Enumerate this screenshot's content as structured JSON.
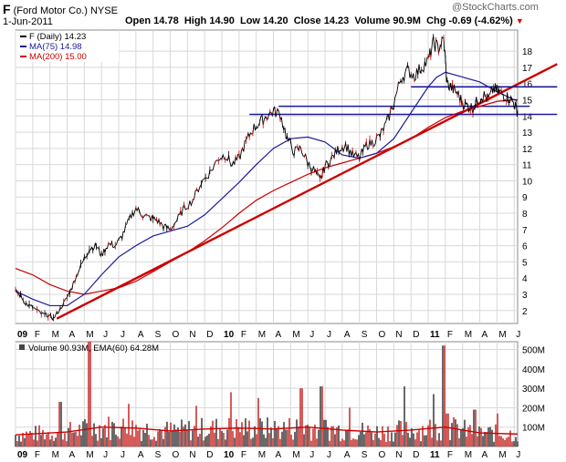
{
  "header": {
    "symbol": "F",
    "company": "(Ford Motor Co.)",
    "exchange": "NYSE",
    "date": "1-Jun-2011",
    "watermark": "@StockCharts.com",
    "stats": [
      {
        "label": "Open",
        "value": "14.78"
      },
      {
        "label": "High",
        "value": "14.90"
      },
      {
        "label": "Low",
        "value": "14.20"
      },
      {
        "label": "Close",
        "value": "14.23"
      },
      {
        "label": "Volume",
        "value": "90.9M"
      },
      {
        "label": "Chg",
        "value": "-0.69 (-4.62%)"
      }
    ]
  },
  "legend": [
    {
      "text": "F (Daily) 14.23",
      "color": "#000000"
    },
    {
      "text": "MA(75) 14.98",
      "color": "#1a1a9c"
    },
    {
      "text": "MA(200) 15.00",
      "color": "#cc0000"
    }
  ],
  "volume_legend": "Volume 90.93M, EMA(60) 64.28M",
  "colors": {
    "price": "#000000",
    "price_down": "#cc0000",
    "ma75": "#1a1a9c",
    "ma200": "#cc0000",
    "trendline": "#cc0000",
    "support": "#1a1a9c",
    "vol_up": "#444444",
    "vol_down": "#cc3333",
    "vol_ema": "#cc0000",
    "grid": "#d8d8d8"
  },
  "chart_data": [
    {
      "type": "line",
      "title": "F (Ford Motor Co.) NYSE - Daily",
      "x_range": [
        "2009-01-01",
        "2011-06-01"
      ],
      "ylim": [
        1.2,
        19.3
      ],
      "y_ticks": [
        2,
        3,
        4,
        5,
        6,
        7,
        8,
        9,
        10,
        11,
        12,
        13,
        14,
        15,
        16,
        17,
        18
      ],
      "x_ticks": [
        {
          "label": "09",
          "m": 0,
          "bold": true
        },
        {
          "label": "F",
          "m": 1
        },
        {
          "label": "M",
          "m": 2
        },
        {
          "label": "A",
          "m": 3
        },
        {
          "label": "M",
          "m": 4
        },
        {
          "label": "J",
          "m": 5
        },
        {
          "label": "J",
          "m": 6
        },
        {
          "label": "A",
          "m": 7
        },
        {
          "label": "S",
          "m": 8
        },
        {
          "label": "O",
          "m": 9
        },
        {
          "label": "N",
          "m": 10
        },
        {
          "label": "D",
          "m": 11
        },
        {
          "label": "10",
          "m": 12,
          "bold": true
        },
        {
          "label": "F",
          "m": 13
        },
        {
          "label": "M",
          "m": 14
        },
        {
          "label": "A",
          "m": 15
        },
        {
          "label": "M",
          "m": 16
        },
        {
          "label": "J",
          "m": 17
        },
        {
          "label": "J",
          "m": 18
        },
        {
          "label": "A",
          "m": 19
        },
        {
          "label": "S",
          "m": 20
        },
        {
          "label": "O",
          "m": 21
        },
        {
          "label": "N",
          "m": 22
        },
        {
          "label": "D",
          "m": 23
        },
        {
          "label": "11",
          "m": 24,
          "bold": true
        },
        {
          "label": "F",
          "m": 25
        },
        {
          "label": "M",
          "m": 26
        },
        {
          "label": "A",
          "m": 27
        },
        {
          "label": "M",
          "m": 28
        },
        {
          "label": "J",
          "m": 29
        }
      ],
      "series": [
        {
          "name": "F (Daily)",
          "last": 14.23,
          "points": [
            [
              0,
              3.2
            ],
            [
              0.3,
              2.9
            ],
            [
              0.6,
              2.4
            ],
            [
              1.0,
              2.2
            ],
            [
              1.5,
              1.8
            ],
            [
              1.9,
              1.7
            ],
            [
              2.2,
              1.5
            ],
            [
              2.6,
              2.1
            ],
            [
              3.0,
              2.8
            ],
            [
              3.3,
              3.5
            ],
            [
              3.6,
              4.3
            ],
            [
              4.0,
              5.2
            ],
            [
              4.3,
              5.8
            ],
            [
              4.7,
              6.0
            ],
            [
              5.0,
              5.4
            ],
            [
              5.4,
              6.1
            ],
            [
              5.8,
              6.0
            ],
            [
              6.2,
              6.6
            ],
            [
              6.6,
              7.6
            ],
            [
              7.0,
              8.3
            ],
            [
              7.4,
              7.9
            ],
            [
              7.8,
              7.7
            ],
            [
              8.2,
              7.6
            ],
            [
              8.6,
              7.2
            ],
            [
              9.0,
              7.0
            ],
            [
              9.4,
              7.6
            ],
            [
              9.8,
              8.3
            ],
            [
              10.3,
              8.8
            ],
            [
              10.8,
              9.9
            ],
            [
              11.3,
              10.5
            ],
            [
              11.8,
              11.4
            ],
            [
              12.2,
              11.6
            ],
            [
              12.6,
              11.0
            ],
            [
              13.0,
              11.4
            ],
            [
              13.4,
              12.4
            ],
            [
              13.8,
              13.2
            ],
            [
              14.2,
              13.6
            ],
            [
              14.6,
              14.0
            ],
            [
              15.0,
              14.3
            ],
            [
              15.4,
              14.1
            ],
            [
              15.8,
              12.6
            ],
            [
              16.2,
              11.8
            ],
            [
              16.6,
              12.0
            ],
            [
              17.0,
              11.1
            ],
            [
              17.4,
              10.6
            ],
            [
              17.7,
              10.0
            ],
            [
              18.0,
              10.9
            ],
            [
              18.4,
              11.4
            ],
            [
              18.8,
              12.0
            ],
            [
              19.2,
              12.2
            ],
            [
              19.6,
              11.6
            ],
            [
              20.0,
              11.4
            ],
            [
              20.4,
              12.2
            ],
            [
              20.8,
              12.4
            ],
            [
              21.2,
              12.8
            ],
            [
              21.6,
              13.6
            ],
            [
              22.0,
              14.8
            ],
            [
              22.4,
              16.3
            ],
            [
              22.8,
              16.8
            ],
            [
              23.2,
              16.5
            ],
            [
              23.6,
              17.0
            ],
            [
              24.0,
              17.4
            ],
            [
              24.3,
              18.5
            ],
            [
              24.6,
              18.2
            ],
            [
              24.9,
              18.7
            ],
            [
              25.1,
              16.0
            ],
            [
              25.4,
              15.7
            ],
            [
              25.7,
              15.4
            ],
            [
              26.0,
              14.8
            ],
            [
              26.3,
              14.6
            ],
            [
              26.6,
              14.5
            ],
            [
              26.9,
              15.0
            ],
            [
              27.2,
              15.3
            ],
            [
              27.5,
              15.0
            ],
            [
              27.8,
              15.7
            ],
            [
              28.1,
              15.5
            ],
            [
              28.4,
              15.3
            ],
            [
              28.7,
              15.1
            ],
            [
              29.0,
              14.8
            ],
            [
              29.2,
              14.23
            ]
          ]
        },
        {
          "name": "MA(75)",
          "last": 14.98,
          "points": [
            [
              0,
              3.2
            ],
            [
              1,
              2.7
            ],
            [
              2,
              2.3
            ],
            [
              3,
              2.3
            ],
            [
              4,
              3.0
            ],
            [
              5,
              4.2
            ],
            [
              6,
              5.3
            ],
            [
              7,
              6.0
            ],
            [
              8,
              6.6
            ],
            [
              9,
              6.9
            ],
            [
              10,
              7.2
            ],
            [
              11,
              7.9
            ],
            [
              12,
              8.9
            ],
            [
              13,
              9.9
            ],
            [
              14,
              11.0
            ],
            [
              15,
              12.0
            ],
            [
              16,
              12.6
            ],
            [
              17,
              12.7
            ],
            [
              18,
              12.4
            ],
            [
              19,
              11.6
            ],
            [
              20,
              11.4
            ],
            [
              21,
              11.7
            ],
            [
              22,
              12.6
            ],
            [
              23,
              14.2
            ],
            [
              24,
              15.8
            ],
            [
              24.5,
              16.4
            ],
            [
              25,
              16.7
            ],
            [
              26,
              16.4
            ],
            [
              27,
              16.1
            ],
            [
              28,
              15.5
            ],
            [
              29,
              15.0
            ],
            [
              29.2,
              14.98
            ]
          ]
        },
        {
          "name": "MA(200)",
          "last": 15.0,
          "points": [
            [
              0,
              4.6
            ],
            [
              1,
              4.2
            ],
            [
              2,
              3.6
            ],
            [
              3,
              3.2
            ],
            [
              4,
              3.0
            ],
            [
              5,
              3.2
            ],
            [
              6,
              3.4
            ],
            [
              7,
              3.8
            ],
            [
              8,
              4.4
            ],
            [
              9,
              5.0
            ],
            [
              10,
              5.6
            ],
            [
              11,
              6.3
            ],
            [
              12,
              7.1
            ],
            [
              13,
              8.0
            ],
            [
              14,
              8.8
            ],
            [
              15,
              9.4
            ],
            [
              16,
              9.9
            ],
            [
              17,
              10.4
            ],
            [
              18,
              10.8
            ],
            [
              19,
              11.1
            ],
            [
              20,
              11.4
            ],
            [
              21,
              11.7
            ],
            [
              22,
              12.1
            ],
            [
              23,
              12.6
            ],
            [
              24,
              13.3
            ],
            [
              25,
              13.9
            ],
            [
              26,
              14.3
            ],
            [
              27,
              14.6
            ],
            [
              28,
              14.9
            ],
            [
              29,
              15.0
            ],
            [
              29.2,
              15.0
            ]
          ]
        }
      ],
      "annotations": {
        "trendline": {
          "from": [
            2.4,
            1.5
          ],
          "to": [
            31.5,
            17.2
          ]
        },
        "support_lines": [
          {
            "y": 15.8,
            "from_m": 23.0,
            "to_m": 31.5
          },
          {
            "y": 14.6,
            "from_m": 15.3,
            "to_m": 29.9
          },
          {
            "y": 14.1,
            "from_m": 13.6,
            "to_m": 31.5
          }
        ]
      }
    },
    {
      "type": "bar",
      "title": "Volume 90.93M, EMA(60) 64.28M",
      "ylim": [
        0,
        540
      ],
      "y_ticks": [
        {
          "v": 100,
          "label": "100M"
        },
        {
          "v": 200,
          "label": "200M"
        },
        {
          "v": 300,
          "label": "300M"
        },
        {
          "v": 400,
          "label": "400M"
        },
        {
          "v": 500,
          "label": "500M"
        }
      ],
      "ema_last": 64.28,
      "spikes": [
        [
          2.6,
          230
        ],
        [
          4.3,
          540
        ],
        [
          6.6,
          220
        ],
        [
          10.5,
          210
        ],
        [
          12.5,
          280
        ],
        [
          14.1,
          250
        ],
        [
          16.6,
          300
        ],
        [
          17.8,
          310
        ],
        [
          19.4,
          200
        ],
        [
          22.6,
          310
        ],
        [
          24.3,
          270
        ],
        [
          24.9,
          520
        ],
        [
          25.1,
          170
        ],
        [
          26.7,
          190
        ],
        [
          28.0,
          170
        ]
      ],
      "ema": [
        [
          0,
          60
        ],
        [
          3,
          75
        ],
        [
          5,
          100
        ],
        [
          7,
          95
        ],
        [
          9,
          80
        ],
        [
          11,
          90
        ],
        [
          13,
          95
        ],
        [
          15,
          90
        ],
        [
          17,
          100
        ],
        [
          19,
          85
        ],
        [
          21,
          75
        ],
        [
          23,
          85
        ],
        [
          25,
          100
        ],
        [
          27,
          70
        ],
        [
          29.2,
          64
        ]
      ]
    }
  ]
}
